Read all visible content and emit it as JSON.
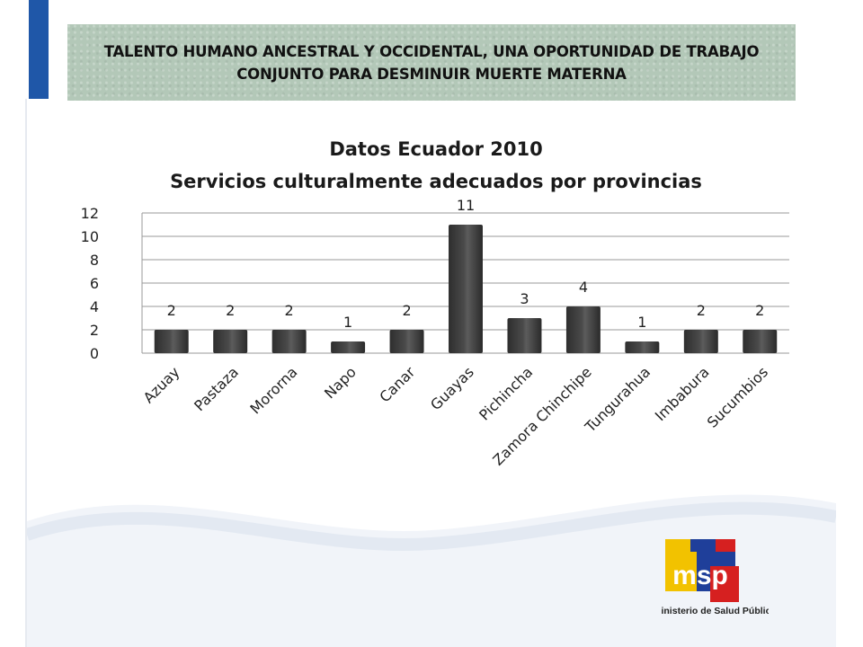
{
  "header": {
    "title": "TALENTO HUMANO ANCESTRAL Y OCCIDENTAL, UNA OPORTUNIDAD DE TRABAJO CONJUNTO PARA DESMINUIR MUERTE MATERNA"
  },
  "chart_data": {
    "type": "bar",
    "title": "Datos Ecuador  2010",
    "subtitle": "Servicios culturalmente adecuados por provincias",
    "categories": [
      "Azuay",
      "Pastaza",
      "Mororna",
      "Napo",
      "Canar",
      "Guayas",
      "Pichincha",
      "Zamora Chinchipe",
      "Tungurahua",
      "Imbabura",
      "Sucumbios"
    ],
    "values": [
      2,
      2,
      2,
      1,
      2,
      11,
      3,
      4,
      1,
      2,
      2
    ],
    "y_ticks": [
      "0",
      "2",
      "4",
      "6",
      "8",
      "10",
      "12"
    ],
    "ylim": [
      0,
      12
    ],
    "grid": true,
    "legend": "none",
    "bar_color": "#4a4a4a"
  },
  "logo": {
    "text": "msp",
    "caption": "Ministerio de Salud Pública",
    "colors": {
      "yellow": "#f2c200",
      "blue": "#1f3f9a",
      "red": "#d62020"
    }
  }
}
